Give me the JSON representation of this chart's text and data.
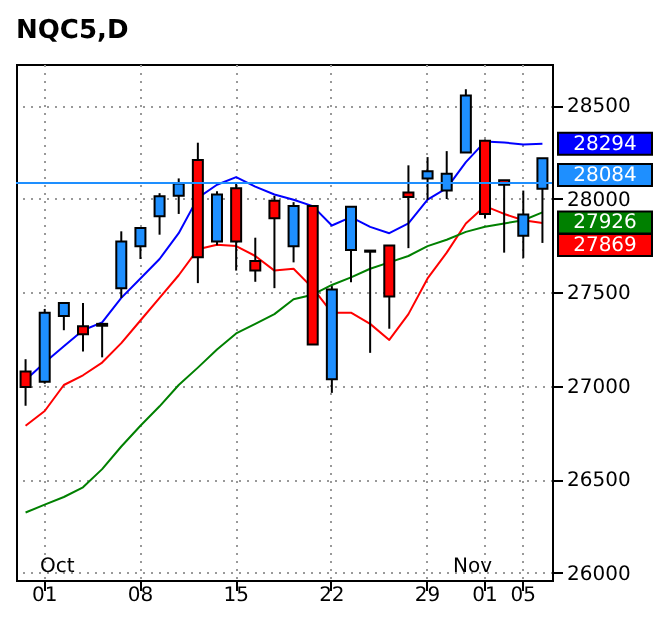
{
  "chart_data": {
    "type": "candlestick",
    "title": "NQC5,D",
    "categories": [
      null,
      "01",
      null,
      null,
      null,
      null,
      "08",
      null,
      null,
      null,
      null,
      "15",
      null,
      null,
      null,
      null,
      "22",
      null,
      null,
      null,
      null,
      "29",
      null,
      null,
      "01",
      null,
      "05",
      null
    ],
    "ohlc": [
      [
        27075,
        27141,
        26892,
        26992
      ],
      [
        27020,
        27410,
        27010,
        27390
      ],
      [
        27372,
        27445,
        27296,
        27441
      ],
      [
        27317,
        27441,
        27182,
        27275
      ],
      [
        27330,
        27330,
        27151,
        27320
      ],
      [
        27521,
        27825,
        27469,
        27770
      ],
      [
        27745,
        27843,
        27677,
        27843
      ],
      [
        27905,
        28029,
        27807,
        28012
      ],
      [
        28015,
        28108,
        27918,
        28081
      ],
      [
        28206,
        28299,
        27548,
        27687
      ],
      [
        27770,
        28040,
        27750,
        28022
      ],
      [
        28056,
        28081,
        27615,
        27770
      ],
      [
        27666,
        27791,
        27555,
        27615
      ],
      [
        27988,
        28015,
        27521,
        27895
      ],
      [
        27745,
        27981,
        27659,
        27960
      ],
      [
        27960,
        27960,
        27220,
        27220
      ],
      [
        27034,
        27532,
        26961,
        27514
      ],
      [
        27725,
        27956,
        27552,
        27956
      ],
      [
        27722,
        27725,
        27175,
        27716
      ],
      [
        27749,
        27749,
        27304,
        27476
      ],
      [
        28033,
        28178,
        27735,
        28009
      ],
      [
        28108,
        28222,
        27994,
        28147
      ],
      [
        28043,
        28254,
        27998,
        28133
      ],
      [
        28247,
        28585,
        28247,
        28551
      ],
      [
        28309,
        28316,
        27895,
        27918
      ],
      [
        28098,
        28098,
        27711,
        28074
      ],
      [
        27801,
        28043,
        27683,
        27915
      ],
      [
        28053,
        28216,
        27763,
        28216
      ]
    ],
    "colors": [
      "#ff0000",
      "#1e8fff",
      "#1e8fff",
      "#ff0000",
      "#ff0000",
      "#1e8fff",
      "#1e8fff",
      "#1e8fff",
      "#1e8fff",
      "#ff0000",
      "#1e8fff",
      "#ff0000",
      "#ff0000",
      "#ff0000",
      "#1e8fff",
      "#ff0000",
      "#1e8fff",
      "#1e8fff",
      "#ff0000",
      "#ff0000",
      "#ff0000",
      "#1e8fff",
      "#1e8fff",
      "#1e8fff",
      "#ff0000",
      "#ff0000",
      "#1e8fff",
      "#1e8fff"
    ],
    "series": [
      {
        "type": "line",
        "color": "#0000ff",
        "values": [
          27030,
          27123,
          27210,
          27296,
          27338,
          27469,
          27573,
          27677,
          27815,
          28004,
          28074,
          28115,
          28064,
          28022,
          27994,
          27960,
          27856,
          27901,
          27849,
          27815,
          27867,
          27994,
          28056,
          28195,
          28305,
          28300,
          28290,
          28294
        ],
        "value_labels": [
          null,
          null,
          null,
          null,
          null,
          null,
          null,
          null,
          null,
          null,
          null,
          null,
          null,
          null,
          null,
          null,
          null,
          null,
          null,
          null,
          null,
          null,
          null,
          null,
          null,
          null,
          null,
          "28294"
        ]
      },
      {
        "type": "line",
        "color": "#ff0000",
        "values": [
          26785,
          26864,
          27003,
          27055,
          27123,
          27227,
          27348,
          27469,
          27590,
          27729,
          27753,
          27746,
          27693,
          27615,
          27625,
          27521,
          27390,
          27390,
          27330,
          27244,
          27382,
          27573,
          27711,
          27867,
          27960,
          27918,
          27884,
          27869
        ],
        "value_labels": [
          null,
          null,
          null,
          null,
          null,
          null,
          null,
          null,
          null,
          null,
          null,
          null,
          null,
          null,
          null,
          null,
          null,
          null,
          null,
          null,
          null,
          null,
          null,
          null,
          null,
          null,
          null,
          "27869"
        ]
      },
      {
        "type": "line",
        "color": "#008000",
        "values": [
          26321,
          26363,
          26404,
          26456,
          26553,
          26674,
          26785,
          26889,
          27003,
          27096,
          27193,
          27279,
          27330,
          27382,
          27462,
          27486,
          27538,
          27579,
          27625,
          27659,
          27693,
          27746,
          27780,
          27822,
          27849,
          27867,
          27884,
          27926
        ],
        "value_labels": [
          null,
          null,
          null,
          null,
          null,
          null,
          null,
          null,
          null,
          null,
          null,
          null,
          null,
          null,
          null,
          null,
          null,
          null,
          null,
          null,
          null,
          null,
          null,
          null,
          null,
          null,
          null,
          "27926"
        ]
      }
    ],
    "ref_lines": [
      {
        "axis": "y",
        "value": 28084,
        "label": "28084",
        "color": "#1e8fff"
      }
    ],
    "annotations": [
      "Oct",
      "Nov"
    ],
    "ylim": [
      25960,
      28720
    ],
    "yticks": [
      26000,
      26500,
      27000,
      27500,
      28000,
      28500
    ],
    "grid": true,
    "line_style": "solid"
  }
}
